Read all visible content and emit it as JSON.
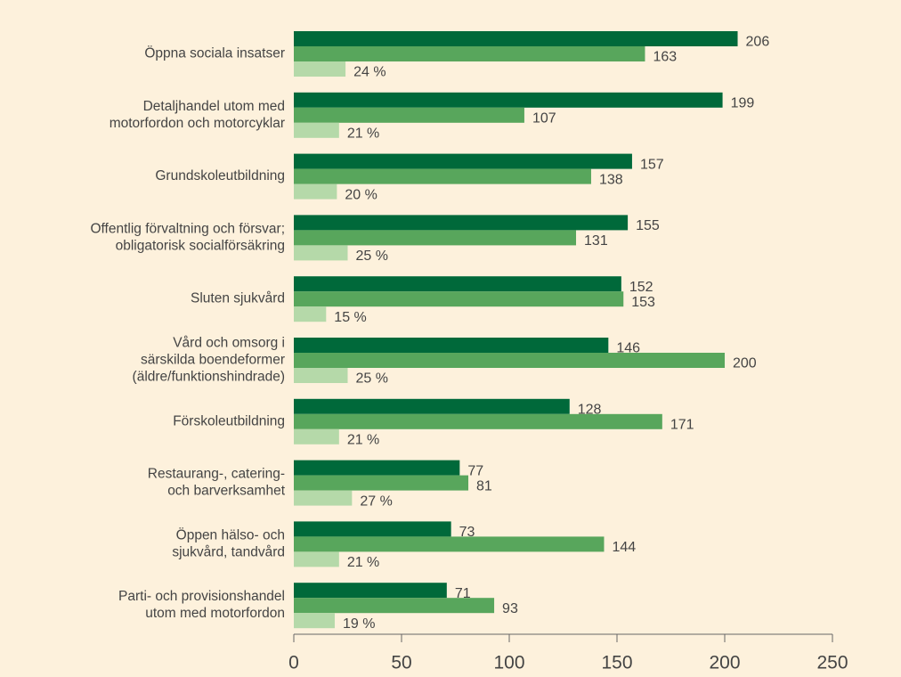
{
  "chart_data": {
    "type": "barh",
    "categories": [
      "Öppna sociala insatser",
      "Detaljhandel utom med\nmotorfordon och motorcyklar",
      "Grundskoleutbildning",
      "Offentlig förvaltning och försvar;\nobligatorisk socialförsäkring",
      "Sluten sjukvård",
      "Vård och omsorg i\nsärskilda boendeformer\n(äldre/funktionshindrade)",
      "Förskoleutbildning",
      "Restaurang-, catering-\noch barverksamhet",
      "Öppen hälso- och\nsjukvård, tandvård",
      "Parti- och provisionshandel\nutom med motorfordon"
    ],
    "series": [
      {
        "color": "#00693a",
        "values": [
          206,
          199,
          157,
          155,
          152,
          146,
          128,
          77,
          73,
          71
        ]
      },
      {
        "color": "#58a65c",
        "values": [
          163,
          107,
          138,
          131,
          153,
          200,
          171,
          81,
          144,
          93
        ]
      },
      {
        "color": "#b5d9a9",
        "values": [
          24,
          21,
          20,
          25,
          15,
          25,
          21,
          27,
          21,
          19
        ],
        "value_labels": [
          "24 %",
          "21 %",
          "20 %",
          "25 %",
          "15 %",
          "25 %",
          "21 %",
          "27 %",
          "21 %",
          "19 %"
        ]
      }
    ],
    "xlim": [
      0,
      250
    ],
    "xticks": [
      0,
      50,
      100,
      150,
      200,
      250
    ]
  }
}
